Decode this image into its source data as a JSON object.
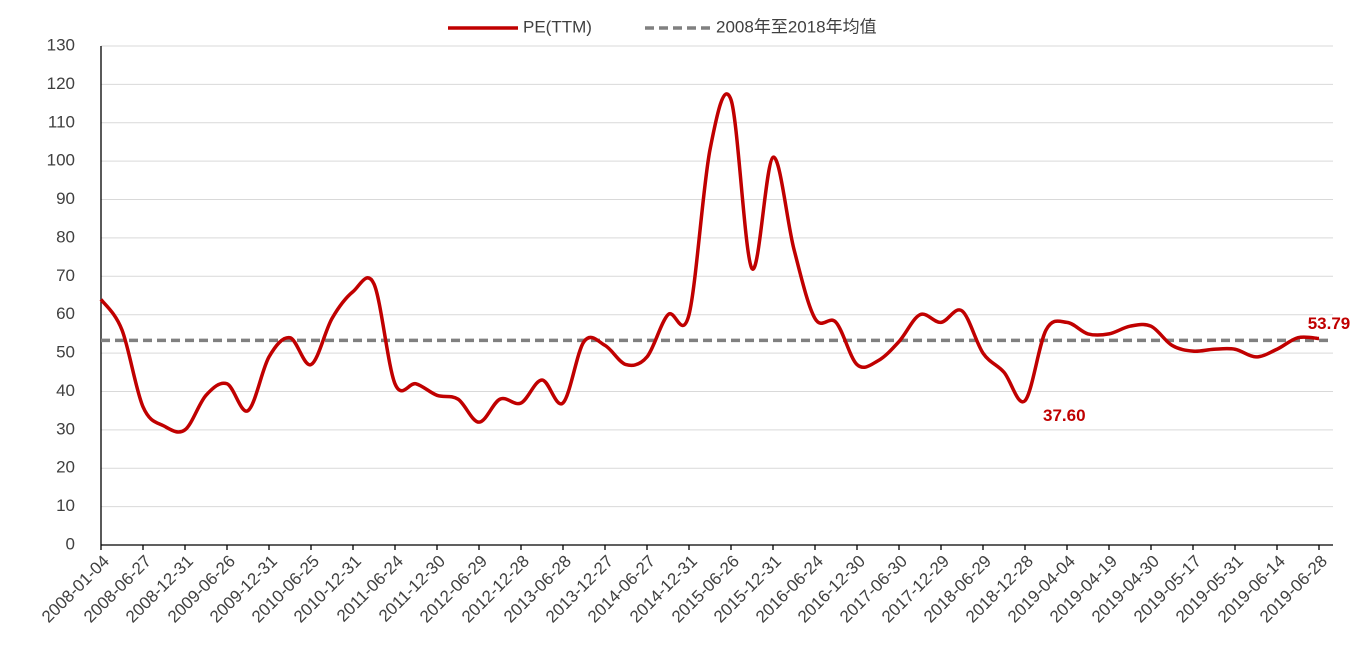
{
  "chart_data": {
    "type": "line",
    "categories": [
      "2008-01-04",
      null,
      "2008-06-27",
      null,
      "2008-12-31",
      null,
      "2009-06-26",
      null,
      "2009-12-31",
      null,
      "2010-06-25",
      null,
      "2010-12-31",
      null,
      "2011-06-24",
      null,
      "2011-12-30",
      null,
      "2012-06-29",
      null,
      "2012-12-28",
      null,
      "2013-06-28",
      null,
      "2013-12-27",
      null,
      "2014-06-27",
      null,
      "2014-12-31",
      null,
      "2015-06-26",
      null,
      "2015-12-31",
      null,
      "2016-06-24",
      null,
      "2016-12-30",
      null,
      "2017-06-30",
      null,
      "2017-12-29",
      null,
      "2018-06-29",
      null,
      "2018-12-28",
      null,
      "2019-04-04",
      null,
      "2019-04-19",
      null,
      "2019-04-30",
      null,
      "2019-05-17",
      null,
      "2019-05-31",
      null,
      "2019-06-14",
      null,
      "2019-06-28"
    ],
    "series": [
      {
        "name": "PE(TTM)",
        "color": "#c00000",
        "values": [
          64,
          56,
          36,
          31,
          30,
          39,
          42,
          35,
          49,
          54,
          47,
          59,
          66,
          68,
          42,
          42,
          39,
          38,
          32,
          38,
          37,
          43,
          37,
          53,
          52,
          47,
          49,
          60,
          60,
          103,
          116,
          72,
          101,
          77,
          59,
          58,
          47,
          48,
          53,
          60,
          58,
          61,
          50,
          45,
          37.6,
          56,
          58,
          55,
          55,
          57,
          57,
          52,
          50.5,
          51,
          51,
          49,
          51,
          54,
          53.79
        ],
        "value_labels": [
          {
            "index": 44,
            "label": "37.60"
          },
          {
            "index": 58,
            "label": "53.79"
          }
        ]
      }
    ],
    "mean": {
      "name": "2008年至2018年均值",
      "color": "#808080",
      "value": 53.3
    },
    "ylim": [
      0,
      130
    ],
    "yticks": [
      0,
      10,
      20,
      30,
      40,
      50,
      60,
      70,
      80,
      90,
      100,
      110,
      120,
      130
    ],
    "grid": true,
    "legend": "top"
  }
}
